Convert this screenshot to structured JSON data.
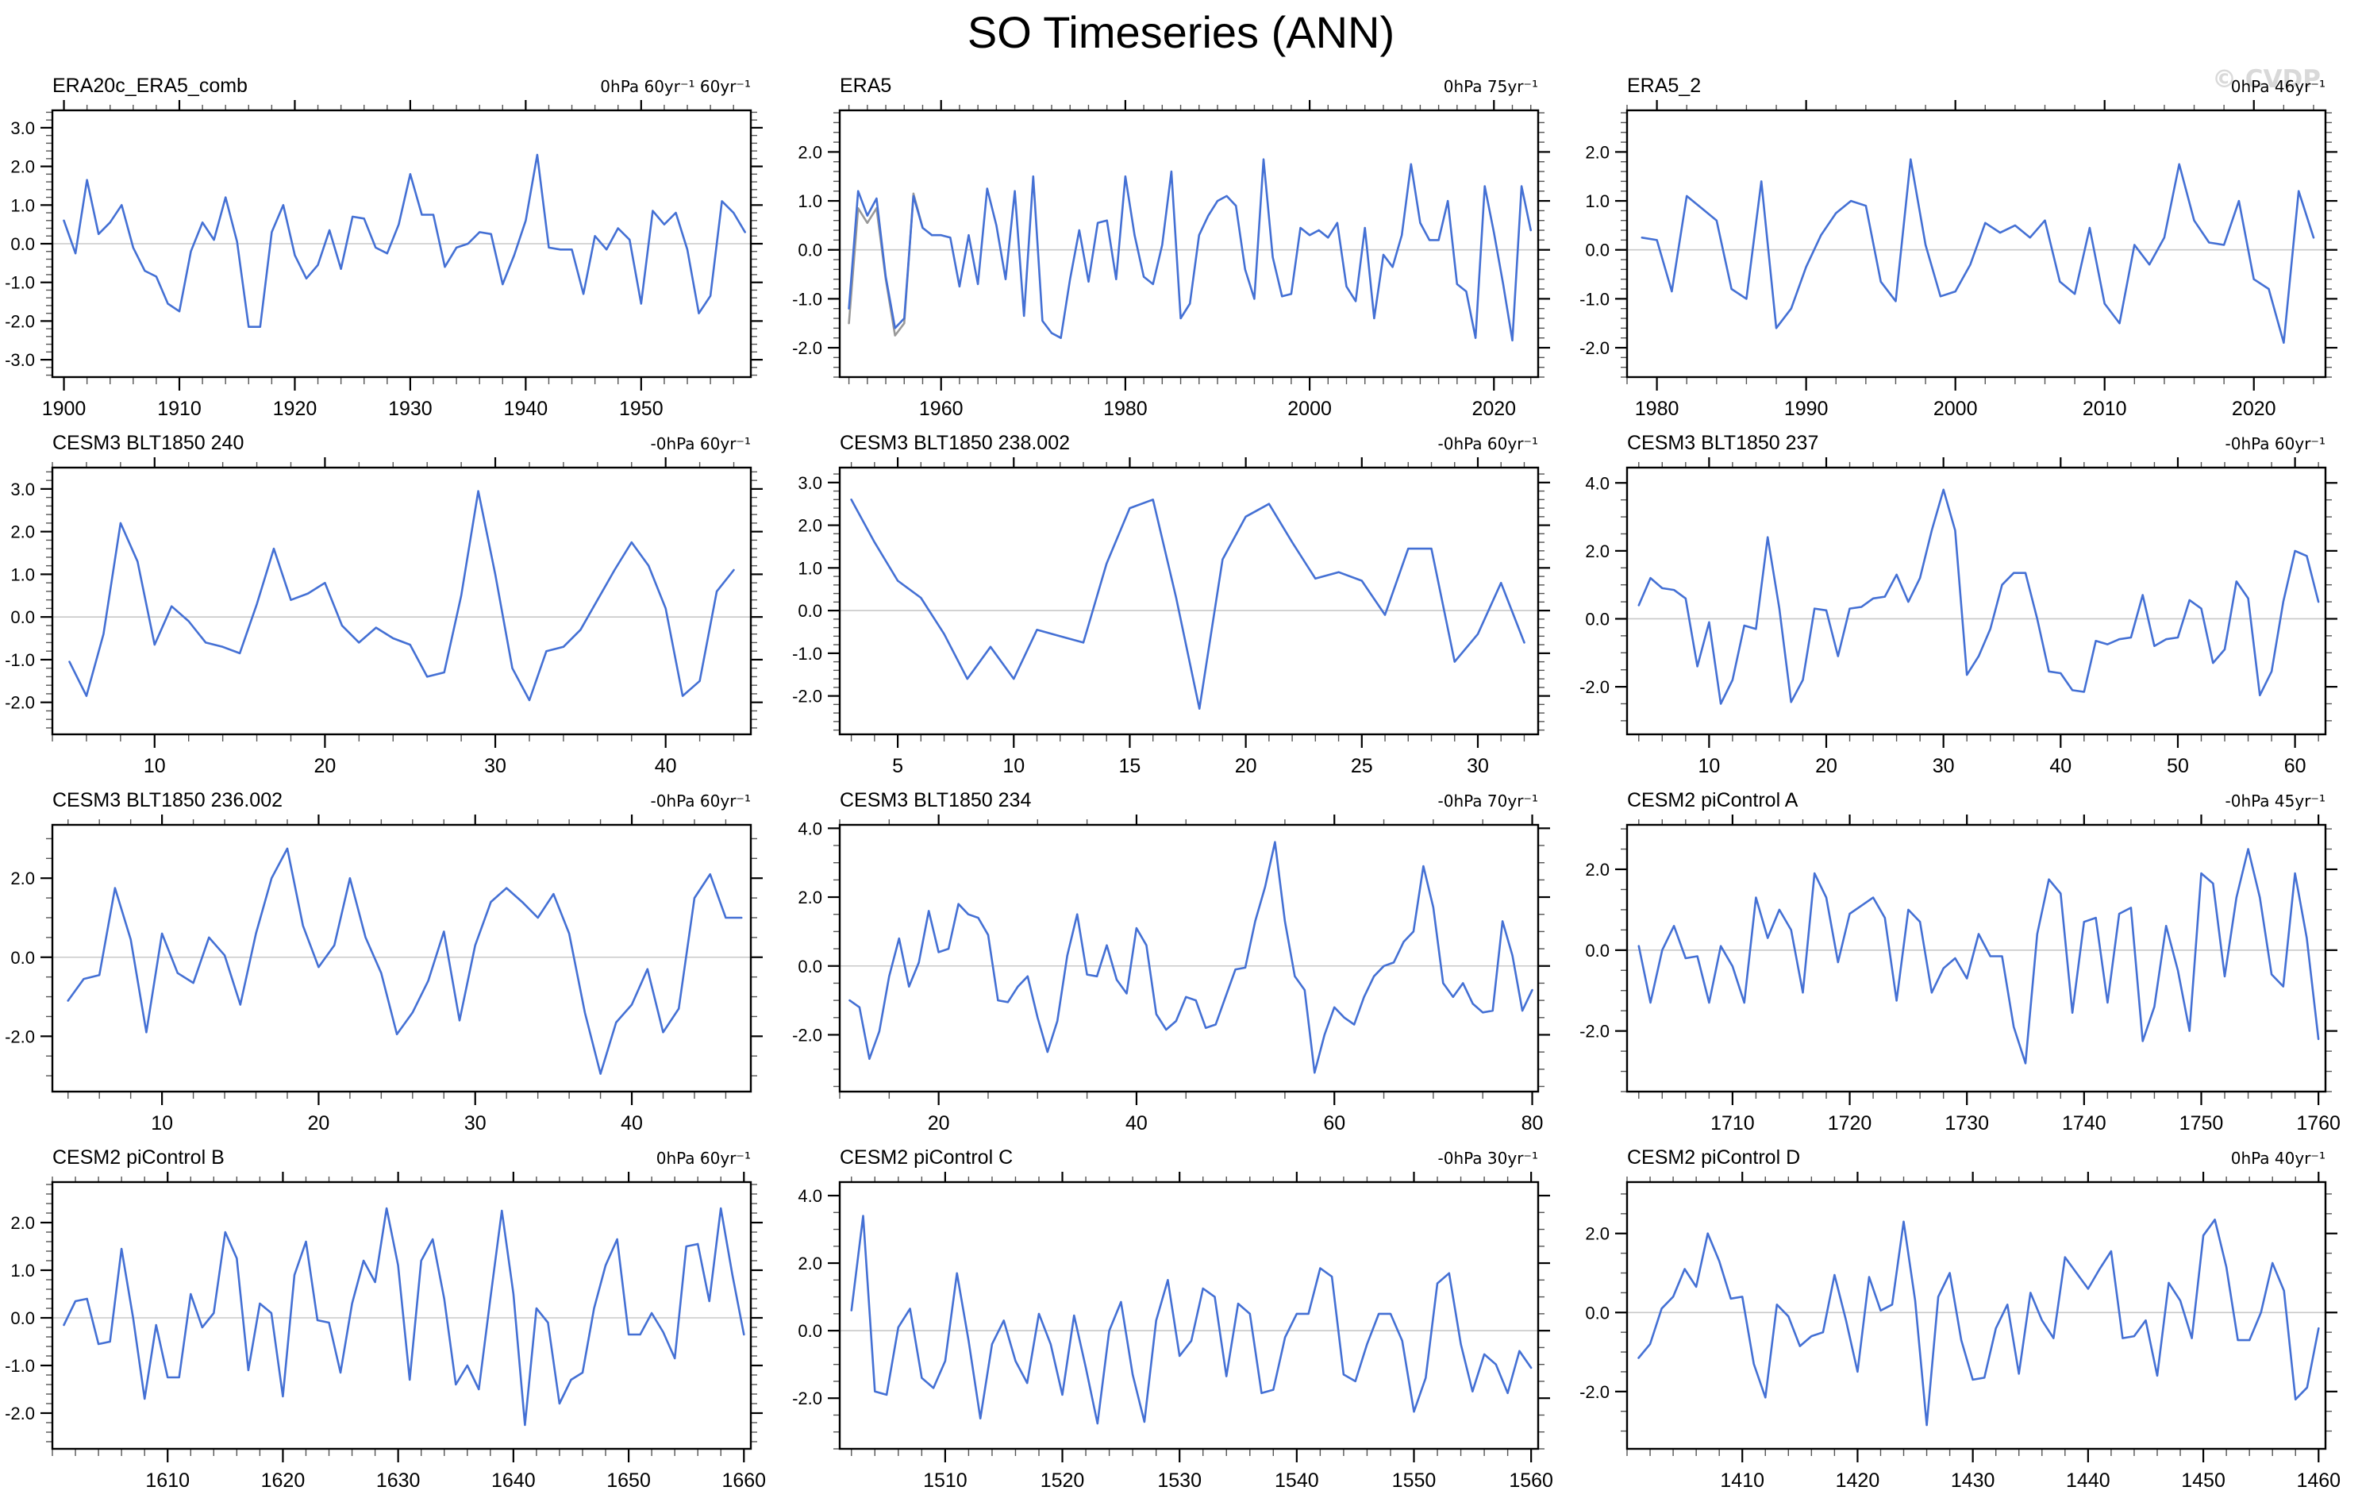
{
  "page": {
    "title": "SO Timeseries (ANN)",
    "watermark": "© CVDP"
  },
  "colors": {
    "series_primary": "#4470d4",
    "series_secondary": "#999999",
    "zero_line": "#c8c8c8",
    "axis": "#000000",
    "minor_tick": "#555555",
    "watermark": "#d9d9d9"
  },
  "chart_data": [
    {
      "type": "line",
      "title": "ERA20c_ERA5_comb",
      "units_label": "0hPa 60yr⁻¹ 60yr⁻¹",
      "xlabel": "",
      "ylabel": "",
      "xlim": [
        1899,
        1959.5
      ],
      "x_ticks": [
        1900,
        1910,
        1920,
        1930,
        1940,
        1950
      ],
      "x_minor_step": 2,
      "ylim": [
        -3.45,
        3.45
      ],
      "y_tick_step": 1.0,
      "y_minor_step": 0.2,
      "grid": false,
      "series": [
        {
          "color": "series_primary",
          "x_start": 1900,
          "values": [
            0.6,
            -0.25,
            1.65,
            0.25,
            0.55,
            1.0,
            -0.1,
            -0.7,
            -0.85,
            -1.55,
            -1.75,
            -0.2,
            0.55,
            0.1,
            1.2,
            0.05,
            -2.15,
            -2.15,
            0.3,
            1.0,
            -0.3,
            -0.9,
            -0.55,
            0.35,
            -0.65,
            0.7,
            0.65,
            -0.1,
            -0.25,
            0.5,
            1.8,
            0.75,
            0.75,
            -0.6,
            -0.1,
            0.0,
            0.3,
            0.25,
            -1.05,
            -0.3,
            0.6,
            2.3,
            -0.1,
            -0.15,
            -0.15,
            -1.3,
            0.2,
            -0.15,
            0.4,
            0.1,
            -1.55,
            0.85,
            0.5,
            0.8,
            -0.15,
            -1.8,
            -1.35,
            1.1,
            0.8,
            0.3
          ]
        }
      ]
    },
    {
      "type": "line",
      "title": "ERA5",
      "units_label": "0hPa 75yr⁻¹",
      "xlabel": "",
      "ylabel": "",
      "xlim": [
        1949,
        2024.8
      ],
      "x_ticks": [
        1960,
        1980,
        2000,
        2020
      ],
      "x_minor_step": 2,
      "ylim": [
        -2.6,
        2.85
      ],
      "y_tick_step": 1.0,
      "y_minor_step": 0.2,
      "grid": false,
      "series": [
        {
          "color": "series_secondary",
          "x_start": 1950,
          "values": [
            -1.5,
            0.85,
            0.55,
            0.85,
            -0.6,
            -1.75,
            -1.5,
            1.15,
            0.45
          ]
        },
        {
          "color": "series_primary",
          "x_start": 1950,
          "values": [
            -1.2,
            1.2,
            0.7,
            1.05,
            -0.55,
            -1.6,
            -1.4,
            1.1,
            0.45,
            0.3,
            0.3,
            0.25,
            -0.75,
            0.3,
            -0.7,
            1.25,
            0.5,
            -0.6,
            1.2,
            -1.35,
            1.5,
            -1.45,
            -1.7,
            -1.8,
            -0.6,
            0.4,
            -0.65,
            0.55,
            0.6,
            -0.6,
            1.5,
            0.3,
            -0.55,
            -0.7,
            0.1,
            1.6,
            -1.4,
            -1.1,
            0.3,
            0.7,
            1.0,
            1.1,
            0.9,
            -0.4,
            -1.0,
            1.85,
            -0.15,
            -0.95,
            -0.9,
            0.45,
            0.3,
            0.4,
            0.25,
            0.55,
            -0.75,
            -1.05,
            0.45,
            -1.4,
            -0.1,
            -0.35,
            0.3,
            1.75,
            0.55,
            0.2,
            0.2,
            1.0,
            -0.7,
            -0.85,
            -1.8,
            1.3,
            0.35,
            -0.7,
            -1.85,
            1.3,
            0.4
          ]
        }
      ]
    },
    {
      "type": "line",
      "title": "ERA5_2",
      "units_label": "0hPa 46yr⁻¹",
      "xlabel": "",
      "ylabel": "",
      "xlim": [
        1978,
        2024.8
      ],
      "x_ticks": [
        1980,
        1990,
        2000,
        2010,
        2020
      ],
      "x_minor_step": 2,
      "ylim": [
        -2.6,
        2.85
      ],
      "y_tick_step": 1.0,
      "y_minor_step": 0.2,
      "grid": false,
      "series": [
        {
          "color": "series_primary",
          "x_start": 1979,
          "values": [
            0.25,
            0.2,
            -0.85,
            1.1,
            0.85,
            0.6,
            -0.8,
            -1.0,
            1.4,
            -1.6,
            -1.2,
            -0.35,
            0.3,
            0.75,
            1.0,
            0.9,
            -0.65,
            -1.05,
            1.85,
            0.1,
            -0.95,
            -0.85,
            -0.3,
            0.55,
            0.35,
            0.5,
            0.25,
            0.6,
            -0.65,
            -0.9,
            0.45,
            -1.1,
            -1.5,
            0.1,
            -0.3,
            0.25,
            1.75,
            0.6,
            0.15,
            0.1,
            1.0,
            -0.6,
            -0.8,
            -1.9,
            1.2,
            0.25
          ]
        }
      ]
    },
    {
      "type": "line",
      "title": "CESM3 BLT1850 240",
      "units_label": "-0hPa 60yr⁻¹",
      "xlabel": "",
      "ylabel": "",
      "xlim": [
        4,
        45
      ],
      "x_ticks": [
        10,
        20,
        30,
        40
      ],
      "x_minor_step": 2,
      "ylim": [
        -2.75,
        3.5
      ],
      "y_tick_step": 1.0,
      "y_minor_step": 0.2,
      "grid": false,
      "series": [
        {
          "color": "series_primary",
          "x_start": 5,
          "values": [
            -1.05,
            -1.85,
            -0.4,
            2.2,
            1.3,
            -0.65,
            0.25,
            -0.1,
            -0.6,
            -0.7,
            -0.85,
            0.3,
            1.6,
            0.4,
            0.55,
            0.8,
            -0.2,
            -0.6,
            -0.25,
            -0.5,
            -0.65,
            -1.4,
            -1.3,
            0.5,
            2.95,
            1.0,
            -1.2,
            -1.95,
            -0.8,
            -0.7,
            -0.3,
            0.4,
            1.1,
            1.75,
            1.2,
            0.2,
            -1.85,
            -1.5,
            0.6,
            1.1
          ]
        }
      ]
    },
    {
      "type": "line",
      "title": "CESM3 BLT1850 238.002",
      "units_label": "-0hPa 60yr⁻¹",
      "xlabel": "",
      "ylabel": "",
      "xlim": [
        2.5,
        32.6
      ],
      "x_ticks": [
        5,
        10,
        15,
        20,
        25,
        30
      ],
      "x_minor_step": 1,
      "ylim": [
        -2.9,
        3.35
      ],
      "y_tick_step": 1.0,
      "y_minor_step": 0.2,
      "grid": false,
      "series": [
        {
          "color": "series_primary",
          "x_start": 3,
          "values": [
            2.6,
            1.6,
            0.7,
            0.3,
            -0.55,
            -1.6,
            -0.85,
            -1.6,
            -0.45,
            -0.6,
            -0.75,
            1.1,
            2.4,
            2.6,
            0.3,
            -2.3,
            1.2,
            2.2,
            2.5,
            1.6,
            0.75,
            0.9,
            0.7,
            -0.1,
            1.45,
            1.45,
            -1.2,
            -0.55,
            0.65,
            -0.75
          ]
        }
      ]
    },
    {
      "type": "line",
      "title": "CESM3 BLT1850 237",
      "units_label": "-0hPa 60yr⁻¹",
      "xlabel": "",
      "ylabel": "",
      "xlim": [
        3,
        62.6
      ],
      "x_ticks": [
        10,
        20,
        30,
        40,
        50,
        60
      ],
      "x_minor_step": 2,
      "ylim": [
        -3.4,
        4.45
      ],
      "y_tick_step": 2.0,
      "y_minor_step": 0.5,
      "grid": false,
      "series": [
        {
          "color": "series_primary",
          "x_start": 4,
          "values": [
            0.4,
            1.2,
            0.9,
            0.85,
            0.6,
            -1.4,
            -0.1,
            -2.5,
            -1.8,
            -0.2,
            -0.3,
            2.4,
            0.3,
            -2.45,
            -1.8,
            0.3,
            0.25,
            -1.1,
            0.3,
            0.35,
            0.6,
            0.65,
            1.3,
            0.5,
            1.2,
            2.6,
            3.8,
            2.6,
            -1.65,
            -1.1,
            -0.3,
            1.0,
            1.35,
            1.35,
            0.0,
            -1.55,
            -1.6,
            -2.1,
            -2.15,
            -0.65,
            -0.75,
            -0.6,
            -0.55,
            0.7,
            -0.8,
            -0.6,
            -0.55,
            0.55,
            0.3,
            -1.3,
            -0.9,
            1.1,
            0.6,
            -2.25,
            -1.55,
            0.5,
            2.0,
            1.85,
            0.5
          ]
        }
      ]
    },
    {
      "type": "line",
      "title": "CESM3 BLT1850 236.002",
      "units_label": "-0hPa 60yr⁻¹",
      "xlabel": "",
      "ylabel": "",
      "xlim": [
        3,
        47.6
      ],
      "x_ticks": [
        10,
        20,
        30,
        40
      ],
      "x_minor_step": 2,
      "ylim": [
        -3.4,
        3.35
      ],
      "y_tick_step": 2.0,
      "y_minor_step": 0.5,
      "grid": false,
      "series": [
        {
          "color": "series_primary",
          "x_start": 4,
          "values": [
            -1.1,
            -0.55,
            -0.45,
            1.75,
            0.45,
            -1.9,
            0.6,
            -0.4,
            -0.65,
            0.5,
            0.05,
            -1.2,
            0.6,
            2.0,
            2.75,
            0.8,
            -0.25,
            0.3,
            2.0,
            0.5,
            -0.4,
            -1.95,
            -1.4,
            -0.6,
            0.65,
            -1.6,
            0.3,
            1.4,
            1.75,
            1.4,
            1.0,
            1.6,
            0.6,
            -1.4,
            -2.95,
            -1.65,
            -1.2,
            -0.3,
            -1.9,
            -1.3,
            1.5,
            2.1,
            1.0,
            1.0
          ]
        }
      ]
    },
    {
      "type": "line",
      "title": "CESM3 BLT1850 234",
      "units_label": "-0hPa 70yr⁻¹",
      "xlabel": "",
      "ylabel": "",
      "xlim": [
        10,
        80.6
      ],
      "x_ticks": [
        20,
        40,
        60,
        80
      ],
      "x_minor_step": 5,
      "ylim": [
        -3.65,
        4.1
      ],
      "y_tick_step": 2.0,
      "y_minor_step": 0.5,
      "grid": false,
      "series": [
        {
          "color": "series_primary",
          "x_start": 11,
          "values": [
            -1.0,
            -1.2,
            -2.7,
            -1.9,
            -0.3,
            0.8,
            -0.6,
            0.1,
            1.6,
            0.4,
            0.5,
            1.8,
            1.5,
            1.4,
            0.9,
            -1.0,
            -1.05,
            -0.6,
            -0.3,
            -1.5,
            -2.5,
            -1.6,
            0.3,
            1.5,
            -0.25,
            -0.3,
            0.6,
            -0.4,
            -0.8,
            1.1,
            0.6,
            -1.4,
            -1.85,
            -1.6,
            -0.9,
            -1.0,
            -1.8,
            -1.7,
            -0.9,
            -0.1,
            -0.05,
            1.3,
            2.3,
            3.6,
            1.3,
            -0.3,
            -0.7,
            -3.1,
            -2.0,
            -1.2,
            -1.5,
            -1.7,
            -0.9,
            -0.3,
            0.0,
            0.1,
            0.7,
            1.0,
            2.9,
            1.7,
            -0.5,
            -0.9,
            -0.5,
            -1.1,
            -1.35,
            -1.3,
            1.3,
            0.3,
            -1.3,
            -0.7
          ]
        }
      ]
    },
    {
      "type": "line",
      "title": "CESM2 piControl A",
      "units_label": "-0hPa 45yr⁻¹",
      "xlabel": "",
      "ylabel": "",
      "xlim": [
        1701,
        1760.6
      ],
      "x_ticks": [
        1710,
        1720,
        1730,
        1740,
        1750,
        1760
      ],
      "x_minor_step": 2,
      "ylim": [
        -3.5,
        3.1
      ],
      "y_tick_step": 2.0,
      "y_minor_step": 0.5,
      "grid": false,
      "series": [
        {
          "color": "series_primary",
          "x_start": 1702,
          "values": [
            0.1,
            -1.3,
            0.0,
            0.6,
            -0.2,
            -0.15,
            -1.3,
            0.1,
            -0.4,
            -1.3,
            1.3,
            0.3,
            1.0,
            0.5,
            -1.05,
            1.9,
            1.3,
            -0.3,
            0.9,
            1.1,
            1.3,
            0.8,
            -1.25,
            1.0,
            0.7,
            -1.05,
            -0.45,
            -0.2,
            -0.7,
            0.4,
            -0.15,
            -0.15,
            -1.9,
            -2.8,
            0.4,
            1.75,
            1.4,
            -1.55,
            0.7,
            0.8,
            -1.3,
            0.9,
            1.05,
            -2.25,
            -1.4,
            0.6,
            -0.5,
            -2.0,
            1.9,
            1.65,
            -0.65,
            1.3,
            2.5,
            1.3,
            -0.6,
            -0.9,
            1.9,
            0.3,
            -2.2
          ]
        }
      ]
    },
    {
      "type": "line",
      "title": "CESM2 piControl B",
      "units_label": "0hPa 60yr⁻¹",
      "xlabel": "",
      "ylabel": "",
      "xlim": [
        1600,
        1660.6
      ],
      "x_ticks": [
        1610,
        1620,
        1630,
        1640,
        1650,
        1660
      ],
      "x_minor_step": 2,
      "ylim": [
        -2.75,
        2.85
      ],
      "y_tick_step": 1.0,
      "y_minor_step": 0.2,
      "grid": false,
      "series": [
        {
          "color": "series_primary",
          "x_start": 1601,
          "values": [
            -0.15,
            0.35,
            0.4,
            -0.55,
            -0.5,
            1.45,
            0.0,
            -1.7,
            -0.15,
            -1.25,
            -1.25,
            0.5,
            -0.2,
            0.1,
            1.8,
            1.25,
            -1.1,
            0.3,
            0.1,
            -1.65,
            0.9,
            1.6,
            -0.05,
            -0.1,
            -1.15,
            0.3,
            1.2,
            0.75,
            2.3,
            1.1,
            -1.3,
            1.2,
            1.65,
            0.4,
            -1.4,
            -1.0,
            -1.5,
            0.4,
            2.25,
            0.5,
            -2.25,
            0.2,
            -0.1,
            -1.8,
            -1.3,
            -1.15,
            0.2,
            1.1,
            1.65,
            -0.35,
            -0.35,
            0.1,
            -0.3,
            -0.85,
            1.5,
            1.55,
            0.35,
            2.3,
            0.9,
            -0.35
          ]
        }
      ]
    },
    {
      "type": "line",
      "title": "CESM2 piControl C",
      "units_label": "-0hPa 30yr⁻¹",
      "xlabel": "",
      "ylabel": "",
      "xlim": [
        1501,
        1560.6
      ],
      "x_ticks": [
        1510,
        1520,
        1530,
        1540,
        1550,
        1560
      ],
      "x_minor_step": 2,
      "ylim": [
        -3.5,
        4.4
      ],
      "y_tick_step": 2.0,
      "y_minor_step": 0.5,
      "grid": false,
      "series": [
        {
          "color": "series_primary",
          "x_start": 1502,
          "values": [
            0.6,
            3.4,
            -1.8,
            -1.9,
            0.1,
            0.65,
            -1.4,
            -1.7,
            -0.9,
            1.7,
            -0.3,
            -2.6,
            -0.4,
            0.3,
            -0.9,
            -1.55,
            0.5,
            -0.4,
            -1.9,
            0.45,
            -1.1,
            -2.75,
            0.0,
            0.85,
            -1.3,
            -2.7,
            0.3,
            1.5,
            -0.75,
            -0.3,
            1.25,
            1.0,
            -1.35,
            0.8,
            0.5,
            -1.85,
            -1.75,
            -0.2,
            0.5,
            0.5,
            1.85,
            1.6,
            -1.3,
            -1.5,
            -0.4,
            0.5,
            0.5,
            -0.3,
            -2.4,
            -1.4,
            1.4,
            1.7,
            -0.4,
            -1.8,
            -0.7,
            -1.0,
            -1.85,
            -0.6,
            -1.1
          ]
        }
      ]
    },
    {
      "type": "line",
      "title": "CESM2 piControl D",
      "units_label": "0hPa 40yr⁻¹",
      "xlabel": "",
      "ylabel": "",
      "xlim": [
        1400,
        1460.6
      ],
      "x_ticks": [
        1410,
        1420,
        1430,
        1440,
        1450,
        1460
      ],
      "x_minor_step": 2,
      "ylim": [
        -3.45,
        3.3
      ],
      "y_tick_step": 2.0,
      "y_minor_step": 0.5,
      "grid": false,
      "series": [
        {
          "color": "series_primary",
          "x_start": 1401,
          "values": [
            -1.15,
            -0.8,
            0.1,
            0.4,
            1.1,
            0.65,
            2.0,
            1.3,
            0.35,
            0.4,
            -1.3,
            -2.15,
            0.2,
            -0.1,
            -0.85,
            -0.6,
            -0.5,
            0.95,
            -0.2,
            -1.5,
            0.9,
            0.05,
            0.2,
            2.3,
            0.3,
            -2.85,
            0.4,
            1.0,
            -0.7,
            -1.7,
            -1.65,
            -0.4,
            0.2,
            -1.55,
            0.5,
            -0.2,
            -0.65,
            1.4,
            1.0,
            0.6,
            1.1,
            1.55,
            -0.65,
            -0.6,
            -0.2,
            -1.6,
            0.75,
            0.3,
            -0.65,
            1.95,
            2.35,
            1.15,
            -0.7,
            -0.7,
            0.0,
            1.25,
            0.55,
            -2.2,
            -1.9,
            -0.4
          ]
        }
      ]
    }
  ]
}
